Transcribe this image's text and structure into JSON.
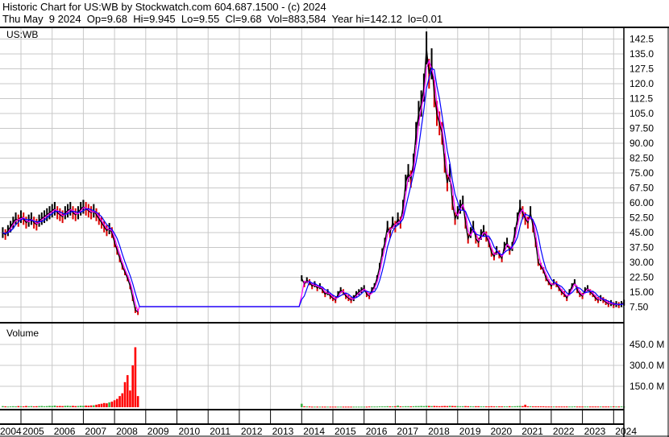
{
  "header": {
    "title": "Historic Chart for US:WB by Stockwatch.com 604.687.1500 - (c) 2024",
    "quote": "Thu May  9 2024  Op=9.68  Hi=9.945  Lo=9.55  Cl=9.68  Vol=883,584  Year hi=142.12  lo=0.01"
  },
  "chart_data": {
    "type": "line",
    "symbol_label": "US:WB",
    "volume_label": "Volume",
    "price_ticks": [
      "142.5",
      "135.0",
      "127.5",
      "120.0",
      "112.5",
      "105.0",
      "97.50",
      "90.00",
      "82.50",
      "75.00",
      "67.50",
      "60.00",
      "52.50",
      "45.00",
      "37.50",
      "30.00",
      "22.50",
      "15.00",
      "7.50"
    ],
    "price_tick_values": [
      142.5,
      135,
      127.5,
      120,
      112.5,
      105,
      97.5,
      90,
      82.5,
      75,
      67.5,
      60,
      52.5,
      45,
      37.5,
      30,
      22.5,
      15,
      7.5
    ],
    "volume_ticks": [
      "450.0 M",
      "300.0 M",
      "150.0 M"
    ],
    "volume_tick_values": [
      450,
      300,
      150
    ],
    "years": [
      "2004",
      "2005",
      "2006",
      "2007",
      "2008",
      "2009",
      "2010",
      "2011",
      "2012",
      "2013",
      "2014",
      "2015",
      "2016",
      "2017",
      "2018",
      "2019",
      "2020",
      "2021",
      "2022",
      "2023",
      "2024"
    ],
    "colors": {
      "price": "#000000",
      "ma_short": "#ff00ff",
      "ma_long": "#0000ff",
      "vol_up": "#3cb043",
      "vol_down": "#ff0000",
      "grid": "#c8c8c8"
    },
    "gap": [
      "2008-11",
      "2013-12"
    ],
    "gap_level": 7.7,
    "series": [
      {
        "start": "2004-06",
        "close": [
          45,
          44,
          46,
          48,
          50,
          52,
          51,
          53,
          52,
          50,
          51,
          52,
          50,
          49,
          51,
          52,
          53,
          54,
          55,
          56,
          57,
          55,
          54,
          53,
          55,
          56,
          57,
          55,
          54,
          55,
          57,
          58,
          57,
          56,
          55,
          56,
          54,
          52,
          50,
          48,
          46,
          47,
          45,
          40,
          36,
          32,
          28,
          25,
          22,
          18,
          12,
          6,
          5
        ],
        "volume_m": [
          8,
          6,
          5,
          6,
          7,
          6,
          8,
          7,
          6,
          9,
          7,
          8,
          6,
          7,
          8,
          9,
          7,
          8,
          10,
          9,
          12,
          8,
          9,
          8,
          10,
          11,
          9,
          10,
          8,
          9,
          11,
          10,
          12,
          11,
          13,
          14,
          18,
          22,
          25,
          30,
          28,
          35,
          40,
          50,
          60,
          80,
          100,
          180,
          230,
          120,
          300,
          430,
          80
        ]
      },
      {
        "start": "2014-01",
        "close": [
          22,
          19,
          21,
          20,
          18,
          19,
          17,
          18,
          16,
          14,
          15,
          13,
          12,
          11,
          14,
          16,
          15,
          13,
          12,
          11,
          12,
          14,
          15,
          16,
          17,
          14,
          13,
          16,
          18,
          22,
          28,
          35,
          40,
          48,
          45,
          50,
          48,
          52,
          50,
          58,
          70,
          75,
          72,
          80,
          95,
          105,
          110,
          118,
          138,
          125,
          130,
          115,
          105,
          100,
          95,
          80,
          70,
          75,
          60,
          52,
          55,
          58,
          60,
          50,
          42,
          45,
          48,
          42,
          40,
          44,
          46,
          43,
          40,
          35,
          33,
          36,
          34,
          32,
          38,
          40,
          36,
          38,
          45,
          52,
          58,
          55,
          52,
          50,
          55,
          48,
          40,
          30,
          28,
          26,
          22,
          20,
          18,
          20,
          19,
          17,
          15,
          14,
          12,
          15,
          18,
          20,
          16,
          14,
          13,
          16,
          17,
          15,
          14,
          12,
          11,
          12,
          11,
          10,
          9,
          9.5,
          8.5,
          9,
          8.5,
          9,
          9.68
        ],
        "volume_m": [
          25,
          6,
          5,
          5,
          4,
          4,
          4,
          4,
          4,
          4,
          4,
          4,
          4,
          4,
          4,
          4,
          4,
          4,
          4,
          4,
          4,
          4,
          4,
          4,
          4,
          4,
          5,
          5,
          5,
          5,
          6,
          6,
          6,
          7,
          6,
          6,
          7,
          12,
          6,
          6,
          7,
          7,
          6,
          7,
          8,
          8,
          9,
          8,
          10,
          9,
          8,
          9,
          8,
          7,
          8,
          9,
          8,
          10,
          9,
          8,
          8,
          7,
          7,
          8,
          7,
          7,
          6,
          7,
          7,
          6,
          6,
          6,
          6,
          7,
          6,
          6,
          6,
          6,
          6,
          6,
          7,
          6,
          7,
          8,
          9,
          8,
          18,
          7,
          7,
          6,
          6,
          6,
          6,
          6,
          5,
          5,
          5,
          5,
          5,
          5,
          5,
          5,
          5,
          5,
          5,
          6,
          5,
          5,
          5,
          5,
          5,
          5,
          5,
          5,
          5,
          5,
          5,
          5,
          5,
          5,
          6,
          5,
          5,
          6,
          4
        ]
      }
    ]
  }
}
